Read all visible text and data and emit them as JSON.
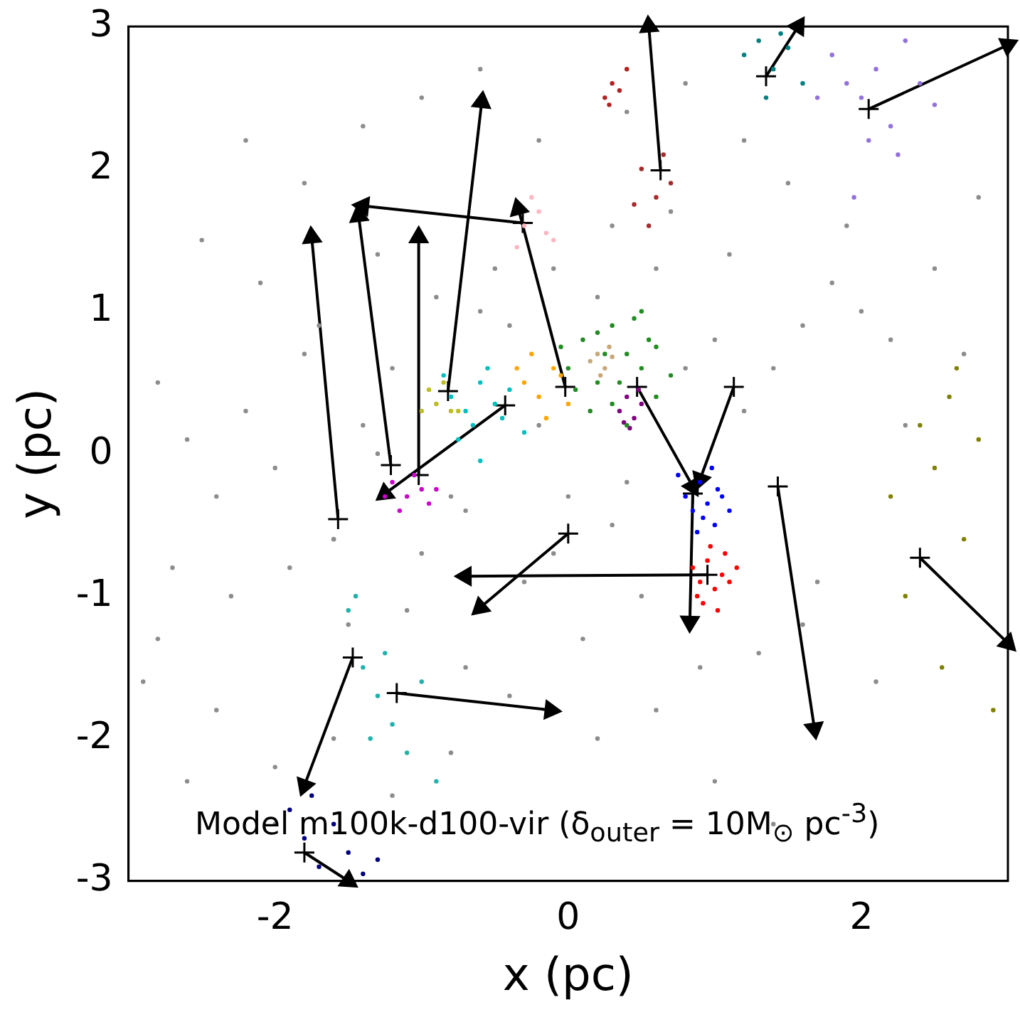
{
  "chart_data": {
    "type": "scatter",
    "xlabel": "x (pc)",
    "ylabel": "y (pc)",
    "xlim": [
      -3,
      3
    ],
    "ylim": [
      -3,
      3
    ],
    "xticks": [
      -2,
      0,
      2
    ],
    "yticks": [
      -3,
      -2,
      -1,
      0,
      1,
      2,
      3
    ],
    "grid": false,
    "legend": false,
    "marker": "circle",
    "annotations": [
      "Model m100k-d100-vir (δ$_{outer}$ = 10M$_{⊙}$ pc$^{-3}$)"
    ],
    "series": [
      {
        "color": "#8c8c8c",
        "x": [
          -2.8,
          -2.6,
          -2.4,
          -2.2,
          -2.0,
          -1.8,
          -1.6,
          -1.4,
          -1.2,
          -1.0,
          -0.8,
          -0.6,
          -0.4,
          -0.2,
          0.0,
          0.2,
          0.4,
          0.6,
          0.8,
          1.0,
          1.2,
          1.4,
          1.6,
          1.8,
          2.0,
          2.2,
          2.5,
          2.8,
          -2.7,
          -2.3,
          -1.9,
          -1.5,
          -1.1,
          -0.7,
          -0.3,
          0.1,
          0.5,
          0.9,
          1.3,
          1.7,
          2.1,
          -2.5,
          -2.1,
          -1.7,
          -1.3,
          -0.9,
          -0.5,
          -0.1,
          0.3,
          0.7,
          1.1,
          1.5,
          1.9,
          -2.9,
          -2.4,
          -2.0,
          -1.6,
          -1.2,
          -0.8,
          -0.4,
          0.2,
          0.6,
          1.0,
          1.4,
          -2.6,
          -2.2,
          -1.8,
          -1.4,
          -1.0,
          -0.6,
          -0.2,
          0.4,
          0.8,
          1.2,
          -1.6,
          -1.3,
          -0.7,
          -0.1,
          0.3,
          1.6,
          2.3,
          2.7,
          -2.8,
          -2.0
        ],
        "values": [
          0.5,
          0.1,
          -0.3,
          0.3,
          -0.1,
          0.7,
          -0.6,
          0.2,
          0.6,
          -0.7,
          -0.3,
          1.0,
          0.9,
          0.2,
          -0.3,
          1.1,
          -0.2,
          1.3,
          0.6,
          0.8,
          0.3,
          0.6,
          0.9,
          1.2,
          1.0,
          0.8,
          1.3,
          1.8,
          -0.8,
          -1.0,
          -0.8,
          -1.2,
          -1.1,
          -1.5,
          -0.9,
          -1.3,
          -1.0,
          -1.5,
          -1.4,
          -0.9,
          -1.6,
          1.5,
          1.2,
          0.9,
          1.4,
          1.1,
          1.3,
          1.3,
          1.6,
          1.7,
          1.4,
          1.9,
          1.6,
          -1.6,
          -1.8,
          -2.2,
          -2.0,
          -2.4,
          -2.1,
          -1.7,
          -2.0,
          -1.8,
          -2.3,
          -2.6,
          -2.3,
          2.2,
          1.9,
          2.3,
          2.5,
          2.7,
          2.2,
          2.4,
          2.6,
          2.2,
          -0.6,
          0.0,
          -0.4,
          -0.7,
          -0.5,
          -1.2,
          0.2,
          0.7,
          -1.3,
          -2.6
        ]
      },
      {
        "color": "#228b22",
        "x": [
          0.0,
          0.1,
          0.2,
          0.3,
          0.4,
          0.5,
          0.6,
          0.15,
          0.25,
          0.35,
          0.45,
          0.55,
          0.05,
          0.3,
          0.7,
          0.2,
          0.4,
          0.6,
          -0.05,
          0.5
        ],
        "values": [
          0.6,
          0.8,
          0.5,
          0.9,
          0.7,
          0.6,
          0.4,
          0.3,
          0.7,
          0.5,
          0.95,
          0.8,
          0.45,
          0.35,
          0.55,
          0.85,
          0.2,
          0.75,
          0.75,
          1.0
        ]
      },
      {
        "color": "#c8a878",
        "x": [
          0.15,
          0.2,
          0.25,
          0.3,
          0.22,
          0.28
        ],
        "values": [
          0.65,
          0.7,
          0.6,
          0.68,
          0.55,
          0.75
        ]
      },
      {
        "color": "#800080",
        "x": [
          0.35,
          0.4,
          0.45,
          0.5,
          0.42,
          0.48,
          0.38
        ],
        "values": [
          0.3,
          0.4,
          0.25,
          0.35,
          0.18,
          0.45,
          0.22
        ]
      },
      {
        "color": "#0000ff",
        "x": [
          0.8,
          0.85,
          0.9,
          0.95,
          1.0,
          1.05,
          0.88,
          0.98,
          1.1,
          0.75,
          0.92,
          1.02
        ],
        "values": [
          -0.3,
          -0.4,
          -0.2,
          -0.35,
          -0.5,
          -0.3,
          -0.55,
          -0.1,
          -0.4,
          -0.15,
          -0.45,
          -0.25
        ]
      },
      {
        "color": "#ff0000",
        "x": [
          0.85,
          0.9,
          0.95,
          1.0,
          1.05,
          1.1,
          0.92,
          1.02,
          0.97,
          1.15,
          0.88,
          1.07
        ],
        "values": [
          -0.8,
          -0.9,
          -0.75,
          -0.95,
          -0.85,
          -0.9,
          -1.05,
          -1.1,
          -0.65,
          -0.8,
          -1.0,
          -0.7
        ]
      },
      {
        "color": "#cc00cc",
        "x": [
          -1.2,
          -1.1,
          -1.0,
          -0.95,
          -1.15,
          -1.05,
          -0.9,
          -1.25
        ],
        "values": [
          -0.2,
          -0.3,
          -0.25,
          -0.35,
          -0.4,
          -0.15,
          -0.25,
          -0.3
        ]
      },
      {
        "color": "#00bfbf",
        "x": [
          -0.8,
          -0.7,
          -0.6,
          -0.5,
          -0.4,
          -0.65,
          -0.55,
          -0.75,
          -0.45,
          -0.85,
          -0.3,
          -0.6
        ],
        "values": [
          0.4,
          0.3,
          0.5,
          0.35,
          0.45,
          0.2,
          0.6,
          0.1,
          0.25,
          0.55,
          0.15,
          -0.05
        ]
      },
      {
        "color": "#ffa500",
        "x": [
          -0.3,
          -0.2,
          -0.1,
          0.0,
          -0.25,
          -0.15,
          -0.05,
          -0.35
        ],
        "values": [
          0.5,
          0.4,
          0.6,
          0.35,
          0.7,
          0.25,
          0.55,
          0.6
        ]
      },
      {
        "color": "#bcbd22",
        "x": [
          -0.95,
          -0.9,
          -0.85,
          -0.8,
          -0.75,
          -1.0
        ],
        "values": [
          0.45,
          0.35,
          0.5,
          0.3,
          0.3,
          0.3
        ]
      },
      {
        "color": "#ffb6c1",
        "x": [
          -0.3,
          -0.2,
          -0.1,
          -0.25,
          -0.15,
          -0.35
        ],
        "values": [
          1.6,
          1.7,
          1.5,
          1.8,
          1.55,
          1.45
        ]
      },
      {
        "color": "#a52a2a",
        "x": [
          0.5,
          0.6,
          0.7,
          0.55,
          0.65,
          0.45
        ],
        "values": [
          2.0,
          1.8,
          1.9,
          1.6,
          2.1,
          1.75
        ]
      },
      {
        "color": "#b22222",
        "x": [
          0.25,
          0.3,
          0.35,
          0.4,
          0.28
        ],
        "values": [
          2.5,
          2.6,
          2.55,
          2.7,
          2.45
        ]
      },
      {
        "color": "#9370db",
        "x": [
          1.8,
          1.9,
          2.0,
          2.1,
          2.2,
          2.3,
          2.4,
          1.7,
          2.05,
          2.25,
          2.5,
          1.95
        ],
        "values": [
          2.8,
          2.6,
          2.5,
          2.7,
          2.3,
          2.9,
          2.6,
          2.5,
          2.2,
          2.1,
          2.45,
          1.8
        ]
      },
      {
        "color": "#008080",
        "x": [
          1.2,
          1.3,
          1.4,
          1.5,
          1.6,
          1.35,
          1.45
        ],
        "values": [
          2.8,
          2.9,
          2.7,
          2.85,
          2.6,
          2.5,
          2.95
        ]
      },
      {
        "color": "#808000",
        "x": [
          2.2,
          2.4,
          2.5,
          2.6,
          2.8,
          2.3,
          2.7,
          2.9,
          2.55,
          2.65
        ],
        "values": [
          -0.3,
          0.2,
          -0.1,
          0.4,
          0.1,
          -1.0,
          -0.6,
          -1.8,
          -1.5,
          0.6
        ]
      },
      {
        "color": "#20b2aa",
        "x": [
          -1.5,
          -1.4,
          -1.3,
          -1.2,
          -1.1,
          -1.0,
          -1.35,
          -1.25,
          -1.45,
          -0.9
        ],
        "values": [
          -1.1,
          -1.5,
          -1.7,
          -1.9,
          -2.1,
          -1.6,
          -2.0,
          -1.4,
          -1.0,
          -2.3
        ]
      },
      {
        "color": "#000080",
        "x": [
          -1.9,
          -1.8,
          -1.7,
          -1.6,
          -1.5,
          -1.4,
          -1.75,
          -1.3
        ],
        "values": [
          -2.5,
          -2.7,
          -2.9,
          -2.6,
          -2.8,
          -2.95,
          -2.4,
          -2.85
        ]
      },
      {
        "type": "line",
        "color": "#000000",
        "marker": "cross",
        "x": [
          0.63,
          0.55
        ],
        "values": [
          1.99,
          3.0
        ]
      },
      {
        "type": "line",
        "color": "#000000",
        "marker": "cross",
        "x": [
          1.35,
          1.57
        ],
        "values": [
          2.65,
          3.0
        ]
      },
      {
        "type": "line",
        "color": "#000000",
        "marker": "cross",
        "x": [
          2.05,
          3.0
        ],
        "values": [
          2.42,
          2.87
        ]
      },
      {
        "type": "line",
        "color": "#000000",
        "marker": "cross",
        "x": [
          -0.31,
          -1.4
        ],
        "values": [
          1.62,
          1.74
        ]
      },
      {
        "type": "line",
        "color": "#000000",
        "marker": "cross",
        "x": [
          -0.02,
          -0.34
        ],
        "values": [
          0.47,
          1.72
        ]
      },
      {
        "type": "line",
        "color": "#000000",
        "marker": "cross",
        "x": [
          -0.82,
          -0.59
        ],
        "values": [
          0.44,
          2.47
        ]
      },
      {
        "type": "line",
        "color": "#000000",
        "marker": "cross",
        "x": [
          -1.21,
          -1.43
        ],
        "values": [
          -0.08,
          1.67
        ]
      },
      {
        "type": "line",
        "color": "#000000",
        "marker": "cross",
        "x": [
          -1.02,
          -1.02
        ],
        "values": [
          -0.15,
          1.52
        ]
      },
      {
        "type": "line",
        "color": "#000000",
        "marker": "cross",
        "x": [
          -1.57,
          -1.75
        ],
        "values": [
          -0.46,
          1.52
        ]
      },
      {
        "type": "line",
        "color": "#000000",
        "marker": "cross",
        "x": [
          -0.43,
          -1.25
        ],
        "values": [
          0.34,
          -0.28
        ]
      },
      {
        "type": "line",
        "color": "#000000",
        "marker": "cross",
        "x": [
          0.47,
          0.85
        ],
        "values": [
          0.47,
          -0.23
        ]
      },
      {
        "type": "line",
        "color": "#000000",
        "marker": "cross",
        "x": [
          1.13,
          0.9
        ],
        "values": [
          0.47,
          -0.18
        ]
      },
      {
        "type": "line",
        "color": "#000000",
        "marker": "cross",
        "x": [
          0.85,
          0.83
        ],
        "values": [
          -0.28,
          -1.18
        ]
      },
      {
        "type": "line",
        "color": "#000000",
        "marker": "cross",
        "x": [
          0.95,
          -0.7
        ],
        "values": [
          -0.85,
          -0.86
        ]
      },
      {
        "type": "line",
        "color": "#000000",
        "marker": "cross",
        "x": [
          0.0,
          -0.6
        ],
        "values": [
          -0.56,
          -1.08
        ]
      },
      {
        "type": "line",
        "color": "#000000",
        "marker": "cross",
        "x": [
          1.43,
          1.68
        ],
        "values": [
          -0.23,
          -1.93
        ]
      },
      {
        "type": "line",
        "color": "#000000",
        "marker": "cross",
        "x": [
          2.4,
          3.0
        ],
        "values": [
          -0.73,
          -1.33
        ]
      },
      {
        "type": "line",
        "color": "#000000",
        "marker": "cross",
        "x": [
          -1.17,
          -0.12
        ],
        "values": [
          -1.68,
          -1.8
        ]
      },
      {
        "type": "line",
        "color": "#000000",
        "marker": "cross",
        "x": [
          -1.47,
          -1.8
        ],
        "values": [
          -1.43,
          -2.33
        ]
      },
      {
        "type": "line",
        "color": "#000000",
        "marker": "cross",
        "x": [
          -1.8,
          -1.5
        ],
        "values": [
          -2.8,
          -3.0
        ]
      }
    ]
  }
}
